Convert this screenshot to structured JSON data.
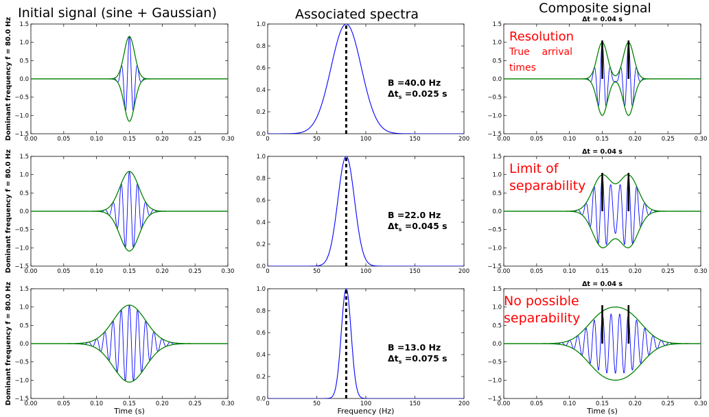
{
  "column_titles": [
    "Initial signal (sine + Gaussian)",
    "Associated spectra",
    "Composite signal"
  ],
  "ylabel": "Dominant frequency f = 80.0 Hz",
  "time_xlabel": "Time (s)",
  "freq_xlabel": "Frequency (Hz)",
  "colors": {
    "signal": "#0000ff",
    "envelope": "#008000",
    "marker": "#000000",
    "annotation": "#ff0000"
  },
  "chart_data": [
    {
      "id": "signal-1",
      "type": "line",
      "row": 0,
      "col": 0,
      "dominant_frequency_hz": 80,
      "center_s": 0.15,
      "bandwidth_hz": 40,
      "x_ticks": [
        "0.00",
        "0.05",
        "0.10",
        "0.15",
        "0.20",
        "0.25",
        "0.30"
      ],
      "y_ticks": [
        "1.5",
        "1.0",
        "0.5",
        "0.0",
        "−0.5",
        "−1.0",
        "−1.5"
      ],
      "xlim": [
        0,
        0.3
      ],
      "ylim": [
        -1.5,
        1.5
      ],
      "series": [
        {
          "values": "sine x gaussian"
        },
        {
          "values": "+/- gaussian envelope"
        }
      ]
    },
    {
      "id": "spectrum-1",
      "type": "line",
      "row": 0,
      "col": 1,
      "center_hz": 80,
      "bandwidth_hz": 40,
      "x_ticks": [
        "0",
        "50",
        "100",
        "150",
        "200"
      ],
      "y_ticks": [
        "1.0",
        "0.8",
        "0.6",
        "0.4",
        "0.2",
        "0.0"
      ],
      "xlim": [
        0,
        200
      ],
      "ylim": [
        0,
        1
      ],
      "label_B": "B =40.0 Hz",
      "label_dts_prefix": "Δt",
      "label_dts_sub": "s",
      "label_dts_value": " =0.025 s"
    },
    {
      "id": "composite-1",
      "type": "line",
      "row": 0,
      "col": 2,
      "title": "Δt = 0.04 s",
      "arrivals_s": [
        0.15,
        0.19
      ],
      "bandwidth_hz": 40,
      "x_ticks": [
        "0.00",
        "0.05",
        "0.10",
        "0.15",
        "0.20",
        "0.25",
        "0.30"
      ],
      "y_ticks": [
        "1.5",
        "1.0",
        "0.5",
        "0.0",
        "−0.5",
        "−1.0",
        "−1.5"
      ],
      "xlim": [
        0,
        0.3
      ],
      "ylim": [
        -1.5,
        1.5
      ],
      "annotation_lines": [
        "Resolution",
        "True    arrival",
        "times"
      ]
    },
    {
      "id": "signal-2",
      "type": "line",
      "row": 1,
      "col": 0,
      "dominant_frequency_hz": 80,
      "center_s": 0.15,
      "bandwidth_hz": 22,
      "x_ticks": [
        "0.00",
        "0.05",
        "0.10",
        "0.15",
        "0.20",
        "0.25",
        "0.30"
      ],
      "y_ticks": [
        "1.5",
        "1.0",
        "0.5",
        "0.0",
        "−0.5",
        "−1.0",
        "−1.5"
      ],
      "xlim": [
        0,
        0.3
      ],
      "ylim": [
        -1.5,
        1.5
      ]
    },
    {
      "id": "spectrum-2",
      "type": "line",
      "row": 1,
      "col": 1,
      "center_hz": 80,
      "bandwidth_hz": 22,
      "x_ticks": [
        "0",
        "50",
        "100",
        "150",
        "200"
      ],
      "y_ticks": [
        "1.0",
        "0.8",
        "0.6",
        "0.4",
        "0.2",
        "0.0"
      ],
      "xlim": [
        0,
        200
      ],
      "ylim": [
        0,
        1
      ],
      "label_B": "B =22.0 Hz",
      "label_dts_prefix": "Δt",
      "label_dts_sub": "s",
      "label_dts_value": " =0.045 s"
    },
    {
      "id": "composite-2",
      "type": "line",
      "row": 1,
      "col": 2,
      "title": "Δt = 0.04 s",
      "arrivals_s": [
        0.15,
        0.19
      ],
      "bandwidth_hz": 22,
      "x_ticks": [
        "0.00",
        "0.05",
        "0.10",
        "0.15",
        "0.20",
        "0.25",
        "0.30"
      ],
      "y_ticks": [
        "1.5",
        "1.0",
        "0.5",
        "0.0",
        "−0.5",
        "−1.0",
        "−1.5"
      ],
      "xlim": [
        0,
        0.3
      ],
      "ylim": [
        -1.5,
        1.5
      ],
      "annotation_lines": [
        "Limit of",
        "separability"
      ]
    },
    {
      "id": "signal-3",
      "type": "line",
      "row": 2,
      "col": 0,
      "dominant_frequency_hz": 80,
      "center_s": 0.15,
      "bandwidth_hz": 13,
      "x_ticks": [
        "0.00",
        "0.05",
        "0.10",
        "0.15",
        "0.20",
        "0.25",
        "0.30"
      ],
      "y_ticks": [
        "1.5",
        "1.0",
        "0.5",
        "0.0",
        "−0.5",
        "−1.0",
        "−1.5"
      ],
      "xlim": [
        0,
        0.3
      ],
      "ylim": [
        -1.5,
        1.5
      ]
    },
    {
      "id": "spectrum-3",
      "type": "line",
      "row": 2,
      "col": 1,
      "center_hz": 80,
      "bandwidth_hz": 13,
      "x_ticks": [
        "0",
        "50",
        "100",
        "150",
        "200"
      ],
      "y_ticks": [
        "1.0",
        "0.8",
        "0.6",
        "0.4",
        "0.2",
        "0.0"
      ],
      "xlim": [
        0,
        200
      ],
      "ylim": [
        0,
        1
      ],
      "label_B": "B =13.0 Hz",
      "label_dts_prefix": "Δt",
      "label_dts_sub": "s",
      "label_dts_value": " =0.075 s"
    },
    {
      "id": "composite-3",
      "type": "line",
      "row": 2,
      "col": 2,
      "title": "Δt = 0.04 s",
      "arrivals_s": [
        0.15,
        0.19
      ],
      "bandwidth_hz": 13,
      "x_ticks": [
        "0.00",
        "0.05",
        "0.10",
        "0.15",
        "0.20",
        "0.25",
        "0.30"
      ],
      "y_ticks": [
        "1.5",
        "1.0",
        "0.5",
        "0.0",
        "−0.5",
        "−1.0",
        "−1.5"
      ],
      "xlim": [
        0,
        0.3
      ],
      "ylim": [
        -1.5,
        1.5
      ],
      "annotation_lines": [
        "No possible",
        "separability"
      ]
    }
  ]
}
